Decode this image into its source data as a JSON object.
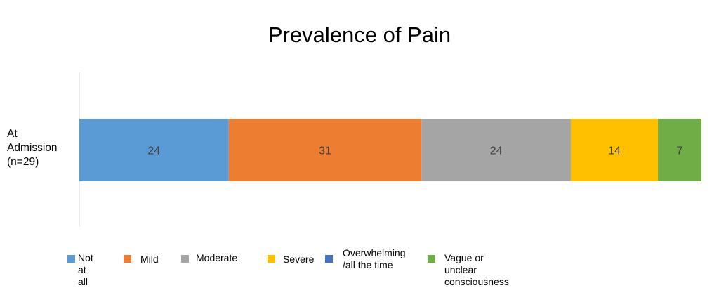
{
  "chart_data": {
    "type": "bar",
    "orientation": "horizontal",
    "stacked": true,
    "title": "Prevalence of Pain",
    "categories": [
      "At\nAdmission\n(n=29)"
    ],
    "series": [
      {
        "name": "Not at all",
        "values": [
          24
        ],
        "color": "#5B9BD5"
      },
      {
        "name": "Mild",
        "values": [
          31
        ],
        "color": "#ED7D31"
      },
      {
        "name": "Moderate",
        "values": [
          24
        ],
        "color": "#A5A5A5"
      },
      {
        "name": "Severe",
        "values": [
          14
        ],
        "color": "#FFC000"
      },
      {
        "name": "Overwhelming\n/all the time",
        "values": [
          0
        ],
        "color": "#4472C4"
      },
      {
        "name": "Vague or unclear consciousness",
        "values": [
          7
        ],
        "color": "#70AD47"
      }
    ],
    "data_labels": [
      "24",
      "31",
      "24",
      "14",
      "7"
    ],
    "legend_position": "bottom",
    "grid": false
  }
}
